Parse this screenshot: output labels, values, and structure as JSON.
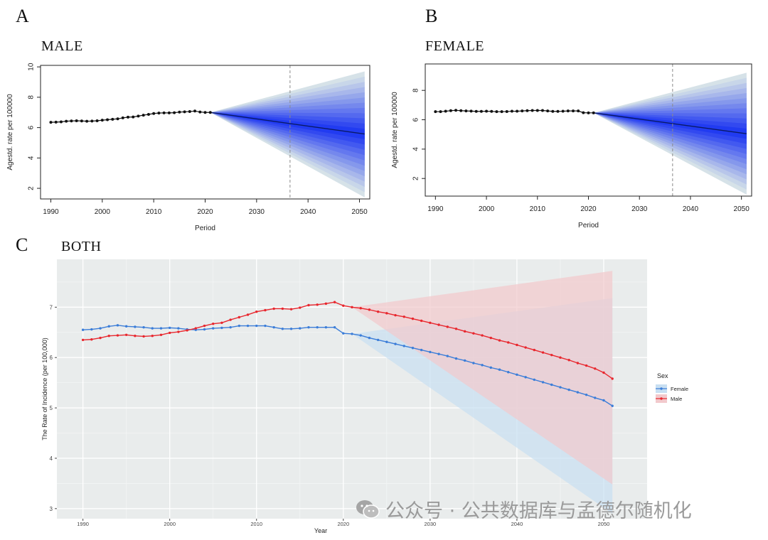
{
  "panels": {
    "a": {
      "letter": "A",
      "title": "MALE"
    },
    "b": {
      "letter": "B",
      "title": "FEMALE"
    },
    "c": {
      "letter": "C",
      "title": "BOTH"
    }
  },
  "watermark": "公众号 · 公共数据库与孟德尔随机化",
  "chart_data": [
    {
      "id": "male",
      "type": "line",
      "title": "MALE",
      "xlabel": "Period",
      "ylabel": "Agestd. rate per 100000",
      "xlim": [
        1988,
        2052
      ],
      "ylim": [
        1.3,
        10.1
      ],
      "xticks": [
        1990,
        2000,
        2010,
        2020,
        2030,
        2040,
        2050
      ],
      "yticks": [
        2,
        4,
        6,
        8,
        10
      ],
      "vline": 2036.5,
      "observed": {
        "x": [
          1990,
          1991,
          1992,
          1993,
          1994,
          1995,
          1996,
          1997,
          1998,
          1999,
          2000,
          2001,
          2002,
          2003,
          2004,
          2005,
          2006,
          2007,
          2008,
          2009,
          2010,
          2011,
          2012,
          2013,
          2014,
          2015,
          2016,
          2017,
          2018,
          2019,
          2020,
          2021
        ],
        "y": [
          6.35,
          6.36,
          6.38,
          6.42,
          6.44,
          6.45,
          6.44,
          6.42,
          6.43,
          6.45,
          6.49,
          6.52,
          6.55,
          6.58,
          6.64,
          6.69,
          6.7,
          6.76,
          6.82,
          6.87,
          6.93,
          6.96,
          6.97,
          6.97,
          6.98,
          7.02,
          7.04,
          7.06,
          7.09,
          7.03,
          7.0,
          7.0
        ]
      },
      "projection": {
        "x": [
          2021,
          2051
        ],
        "mean": [
          7.0,
          5.58
        ],
        "upper": [
          7.0,
          9.7
        ],
        "lower": [
          7.0,
          1.4
        ]
      }
    },
    {
      "id": "female",
      "type": "line",
      "title": "FEMALE",
      "xlabel": "Period",
      "ylabel": "Agestd. rate per 100000",
      "xlim": [
        1988,
        2052
      ],
      "ylim": [
        0.8,
        9.8
      ],
      "xticks": [
        1990,
        2000,
        2010,
        2020,
        2030,
        2040,
        2050
      ],
      "yticks": [
        2,
        4,
        6,
        8
      ],
      "vline": 2036.5,
      "observed": {
        "x": [
          1990,
          1991,
          1992,
          1993,
          1994,
          1995,
          1996,
          1997,
          1998,
          1999,
          2000,
          2001,
          2002,
          2003,
          2004,
          2005,
          2006,
          2007,
          2008,
          2009,
          2010,
          2011,
          2012,
          2013,
          2014,
          2015,
          2016,
          2017,
          2018,
          2019,
          2020,
          2021
        ],
        "y": [
          6.55,
          6.55,
          6.58,
          6.62,
          6.64,
          6.62,
          6.6,
          6.59,
          6.57,
          6.57,
          6.58,
          6.57,
          6.55,
          6.55,
          6.56,
          6.58,
          6.58,
          6.6,
          6.62,
          6.63,
          6.63,
          6.63,
          6.6,
          6.57,
          6.57,
          6.58,
          6.6,
          6.6,
          6.6,
          6.48,
          6.47,
          6.47
        ]
      },
      "projection": {
        "x": [
          2021,
          2051
        ],
        "mean": [
          6.47,
          5.05
        ],
        "upper": [
          6.47,
          9.2
        ],
        "lower": [
          6.47,
          0.9
        ]
      }
    },
    {
      "id": "both",
      "type": "line",
      "title": "BOTH",
      "xlabel": "Year",
      "ylabel": "The Rate of Incidence (per 100,000)",
      "xlim": [
        1987,
        2055
      ],
      "ylim": [
        2.8,
        7.95
      ],
      "xticks": [
        1990,
        2000,
        2010,
        2020,
        2030,
        2040,
        2050
      ],
      "yticks": [
        3,
        4,
        5,
        6,
        7
      ],
      "legend": {
        "title": "Sex",
        "position": "right"
      },
      "series": [
        {
          "name": "Female",
          "color": "#3b7dd8",
          "band_color": "#c8dff2",
          "x": [
            1990,
            1991,
            1992,
            1993,
            1994,
            1995,
            1996,
            1997,
            1998,
            1999,
            2000,
            2001,
            2002,
            2003,
            2004,
            2005,
            2006,
            2007,
            2008,
            2009,
            2010,
            2011,
            2012,
            2013,
            2014,
            2015,
            2016,
            2017,
            2018,
            2019,
            2020,
            2021,
            2022,
            2023,
            2024,
            2025,
            2026,
            2027,
            2028,
            2029,
            2030,
            2031,
            2032,
            2033,
            2034,
            2035,
            2036,
            2037,
            2038,
            2039,
            2040,
            2041,
            2042,
            2043,
            2044,
            2045,
            2046,
            2047,
            2048,
            2049,
            2050,
            2051
          ],
          "y": [
            6.55,
            6.56,
            6.58,
            6.62,
            6.64,
            6.62,
            6.61,
            6.6,
            6.58,
            6.58,
            6.59,
            6.58,
            6.56,
            6.55,
            6.56,
            6.58,
            6.59,
            6.6,
            6.63,
            6.63,
            6.63,
            6.63,
            6.6,
            6.57,
            6.57,
            6.58,
            6.6,
            6.6,
            6.6,
            6.6,
            6.48,
            6.47,
            6.44,
            6.39,
            6.35,
            6.31,
            6.27,
            6.23,
            6.19,
            6.15,
            6.11,
            6.07,
            6.03,
            5.98,
            5.94,
            5.89,
            5.85,
            5.8,
            5.76,
            5.71,
            5.66,
            5.61,
            5.56,
            5.51,
            5.46,
            5.41,
            5.36,
            5.31,
            5.26,
            5.2,
            5.15,
            5.04
          ],
          "band": {
            "x": [
              2021,
              2051
            ],
            "upper": [
              6.47,
              7.18
            ],
            "lower": [
              6.47,
              2.9
            ]
          }
        },
        {
          "name": "Male",
          "color": "#e8272e",
          "band_color": "#f2c9cc",
          "x": [
            1990,
            1991,
            1992,
            1993,
            1994,
            1995,
            1996,
            1997,
            1998,
            1999,
            2000,
            2001,
            2002,
            2003,
            2004,
            2005,
            2006,
            2007,
            2008,
            2009,
            2010,
            2011,
            2012,
            2013,
            2014,
            2015,
            2016,
            2017,
            2018,
            2019,
            2020,
            2021,
            2022,
            2023,
            2024,
            2025,
            2026,
            2027,
            2028,
            2029,
            2030,
            2031,
            2032,
            2033,
            2034,
            2035,
            2036,
            2037,
            2038,
            2039,
            2040,
            2041,
            2042,
            2043,
            2044,
            2045,
            2046,
            2047,
            2048,
            2049,
            2050,
            2051
          ],
          "y": [
            6.35,
            6.36,
            6.39,
            6.43,
            6.44,
            6.45,
            6.43,
            6.42,
            6.43,
            6.45,
            6.49,
            6.51,
            6.54,
            6.58,
            6.63,
            6.67,
            6.69,
            6.75,
            6.8,
            6.85,
            6.91,
            6.94,
            6.97,
            6.97,
            6.96,
            6.99,
            7.04,
            7.05,
            7.07,
            7.1,
            7.03,
            7.0,
            6.98,
            6.95,
            6.91,
            6.88,
            6.84,
            6.81,
            6.77,
            6.73,
            6.69,
            6.65,
            6.61,
            6.57,
            6.52,
            6.48,
            6.44,
            6.39,
            6.34,
            6.3,
            6.25,
            6.2,
            6.15,
            6.1,
            6.05,
            6.0,
            5.95,
            5.89,
            5.84,
            5.78,
            5.7,
            5.58
          ],
          "band": {
            "x": [
              2021,
              2051
            ],
            "upper": [
              7.0,
              7.72
            ],
            "lower": [
              7.0,
              3.48
            ]
          }
        }
      ]
    }
  ]
}
